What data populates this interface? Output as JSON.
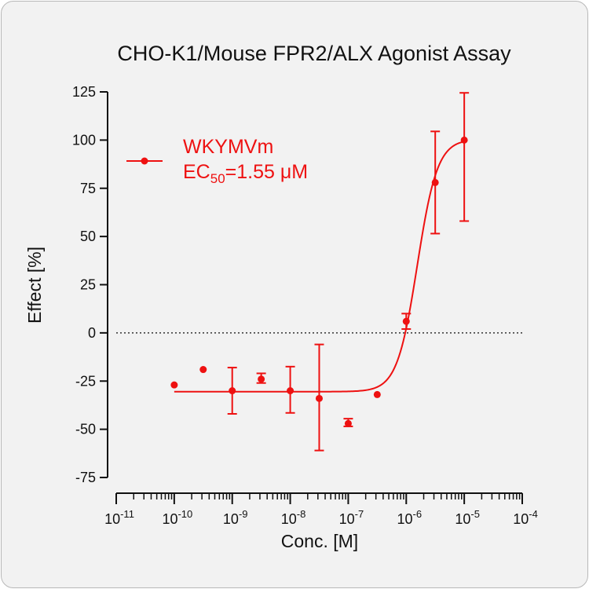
{
  "chart_data": {
    "type": "scatter",
    "title": "CHO-K1/Mouse FPR2/ALX Agonist Assay",
    "xlabel": "Conc. [M]",
    "ylabel": "Effect  [%]",
    "x_scale": "log",
    "x_ticks": [
      {
        "value": 1e-11,
        "base": "10",
        "exp": "-11"
      },
      {
        "value": 1e-10,
        "base": "10",
        "exp": "-10"
      },
      {
        "value": 1e-09,
        "base": "10",
        "exp": "-9"
      },
      {
        "value": 1e-08,
        "base": "10",
        "exp": "-8"
      },
      {
        "value": 1e-07,
        "base": "10",
        "exp": "-7"
      },
      {
        "value": 1e-06,
        "base": "10",
        "exp": "-6"
      },
      {
        "value": 1e-05,
        "base": "10",
        "exp": "-5"
      },
      {
        "value": 0.0001,
        "base": "10",
        "exp": "-4"
      }
    ],
    "xlim": [
      1e-11,
      0.0001
    ],
    "ylim": [
      -75,
      125
    ],
    "y_ticks": [
      -75,
      -50,
      -25,
      0,
      25,
      50,
      75,
      100,
      125
    ],
    "zero_line": true,
    "grid": false,
    "legend_position": "top-left",
    "series": [
      {
        "name": "WKYMVm",
        "ec50_label": {
          "prefix": "EC",
          "subscript": "50",
          "suffix": "=1.55 μM"
        },
        "color": "#ee1111",
        "points": [
          {
            "x": 1e-10,
            "y": -27
          },
          {
            "x": 3.16e-10,
            "y": -19
          },
          {
            "x": 1e-09,
            "y": -30,
            "err_low": -42,
            "err_high": -18
          },
          {
            "x": 3.16e-09,
            "y": -24,
            "err_low": -26,
            "err_high": -21
          },
          {
            "x": 1e-08,
            "y": -30,
            "err_low": -41.5,
            "err_high": -17.5
          },
          {
            "x": 3.16e-08,
            "y": -34,
            "err_low": -61,
            "err_high": -6
          },
          {
            "x": 1e-07,
            "y": -47,
            "err_low": -48.5,
            "err_high": -44.5
          },
          {
            "x": 3.16e-07,
            "y": -32
          },
          {
            "x": 1e-06,
            "y": 6,
            "err_low": 2,
            "err_high": 10
          },
          {
            "x": 3.16e-06,
            "y": 78,
            "err_low": 51.5,
            "err_high": 104.5
          },
          {
            "x": 1e-05,
            "y": 100,
            "err_low": 58,
            "err_high": 124.5
          }
        ],
        "fit": {
          "bottom": -30.5,
          "top": 100.5,
          "log_ec50": -5.81,
          "hill": 2.5,
          "x_start": 1e-10,
          "x_end": 1e-05
        }
      }
    ]
  }
}
